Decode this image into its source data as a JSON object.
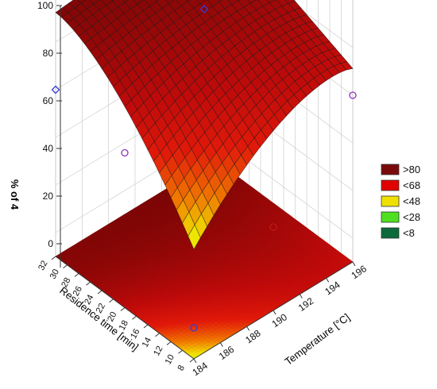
{
  "chart_data": {
    "type": "surface3d",
    "zlabel": "% of 4",
    "xlabel": "Residence time [min]",
    "ylabel": "Temperature [°C]",
    "xlim": [
      8,
      32
    ],
    "ylim": [
      184,
      196
    ],
    "zlim": [
      -10,
      100
    ],
    "x_ticks": [
      "8",
      "10",
      "12",
      "14",
      "16",
      "18",
      "20",
      "22",
      "24",
      "26",
      "28",
      "30",
      "32"
    ],
    "y_ticks": [
      "184",
      "186",
      "188",
      "190",
      "192",
      "194",
      "196"
    ],
    "z_ticks": [
      "0",
      "20",
      "40",
      "60",
      "80",
      "100"
    ],
    "legend": [
      {
        "label": ">80",
        "color": "#7a0a0a"
      },
      {
        "label": "<68",
        "color": "#e00000"
      },
      {
        "label": "<48",
        "color": "#f0e000"
      },
      {
        "label": "<28",
        "color": "#4ee020"
      },
      {
        "label": "<8",
        "color": "#0c6a3a"
      }
    ],
    "legend_position": "right",
    "grid": true,
    "points": [
      {
        "x": 32,
        "y": 184,
        "z": 60,
        "style": "blue-diamond"
      },
      {
        "x": 32,
        "y": 190,
        "z": 93,
        "style": "blue-diamond"
      },
      {
        "x": 32,
        "y": 196,
        "z": 96,
        "style": "blue-diamond"
      },
      {
        "x": 20,
        "y": 190,
        "z": 95,
        "style": "blue-diamond"
      },
      {
        "x": 20,
        "y": 196,
        "z": 90,
        "style": "blue-diamond"
      },
      {
        "x": 20,
        "y": 184,
        "z": 55,
        "style": "purple-circle"
      },
      {
        "x": 8,
        "y": 196,
        "z": 60,
        "style": "purple-circle"
      },
      {
        "x": 8,
        "y": 190,
        "z": 25,
        "style": "red-circle"
      },
      {
        "x": 8,
        "y": 184,
        "z": 3,
        "style": "blue-circle"
      }
    ]
  }
}
